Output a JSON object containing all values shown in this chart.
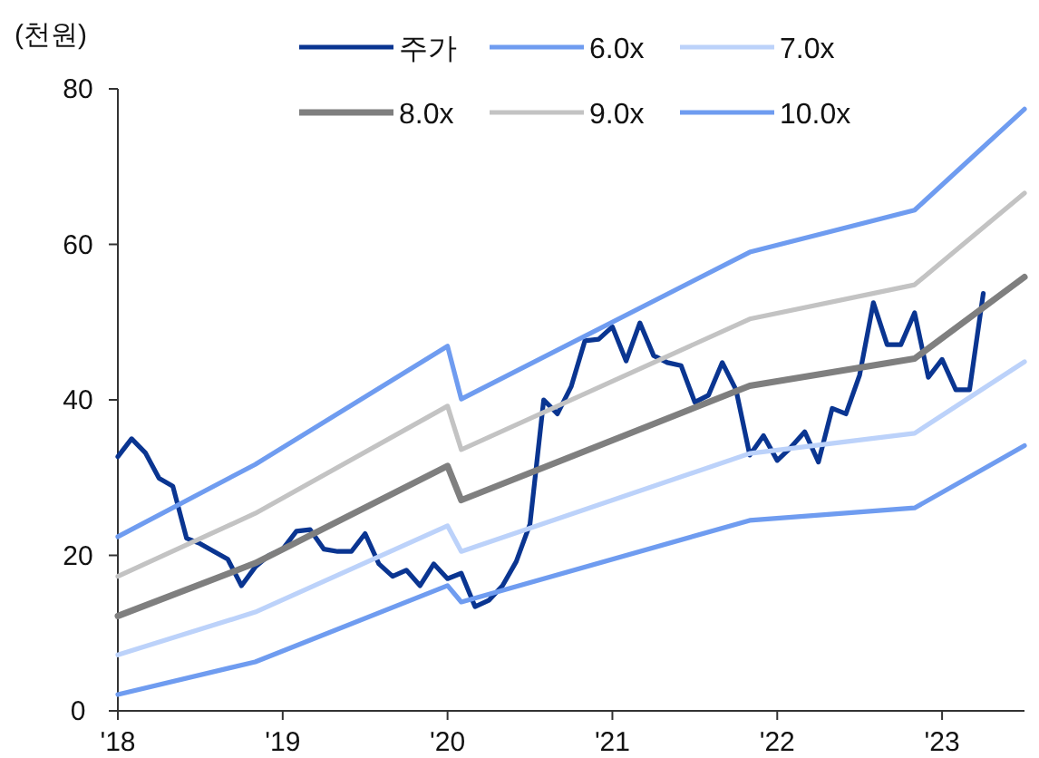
{
  "chart_data": {
    "type": "line",
    "ylabel": "(천원)",
    "legend": "top",
    "xlim": [
      "2018-01",
      "2023-07"
    ],
    "ylim": [
      0,
      80
    ],
    "yticks": [
      0,
      20,
      40,
      60,
      80
    ],
    "xticks": [
      {
        "value": "2018-01",
        "label": "'18"
      },
      {
        "value": "2019-01",
        "label": "'19"
      },
      {
        "value": "2020-01",
        "label": "'20"
      },
      {
        "value": "2021-01",
        "label": "'21"
      },
      {
        "value": "2022-01",
        "label": "'22"
      },
      {
        "value": "2023-01",
        "label": "'23"
      }
    ],
    "series": [
      {
        "name": "주가",
        "color": "#0a3591",
        "x": [
          "2018-01",
          "2018-02",
          "2018-03",
          "2018-04",
          "2018-05",
          "2018-06",
          "2018-07",
          "2018-08",
          "2018-09",
          "2018-10",
          "2018-11",
          "2018-12",
          "2019-01",
          "2019-02",
          "2019-03",
          "2019-04",
          "2019-05",
          "2019-06",
          "2019-07",
          "2019-08",
          "2019-09",
          "2019-10",
          "2019-11",
          "2019-12",
          "2020-01",
          "2020-02",
          "2020-03",
          "2020-04",
          "2020-05",
          "2020-06",
          "2020-07",
          "2020-08",
          "2020-09",
          "2020-10",
          "2020-11",
          "2020-12",
          "2021-01",
          "2021-02",
          "2021-03",
          "2021-04",
          "2021-05",
          "2021-06",
          "2021-07",
          "2021-08",
          "2021-09",
          "2021-10",
          "2021-11",
          "2021-12",
          "2022-01",
          "2022-02",
          "2022-03",
          "2022-04",
          "2022-05",
          "2022-06",
          "2022-07",
          "2022-08",
          "2022-09",
          "2022-10",
          "2022-11",
          "2022-12",
          "2023-01",
          "2023-02",
          "2023-03",
          "2023-04"
        ],
        "values": [
          32.7,
          35.0,
          33.2,
          29.9,
          28.9,
          22.2,
          21.5,
          20.5,
          19.5,
          16.1,
          18.5,
          20.0,
          20.8,
          23.1,
          23.3,
          20.8,
          20.5,
          20.5,
          22.8,
          18.9,
          17.3,
          18.1,
          16.1,
          18.9,
          17.0,
          17.7,
          13.4,
          14.2,
          16.1,
          19.2,
          24.0,
          40.0,
          38.2,
          41.7,
          47.6,
          47.8,
          49.4,
          45.0,
          49.9,
          45.7,
          44.8,
          44.4,
          39.7,
          40.6,
          44.8,
          41.3,
          32.9,
          35.4,
          32.2,
          33.9,
          35.9,
          32.0,
          38.9,
          38.2,
          43.2,
          52.5,
          47.1,
          47.1,
          51.2,
          42.9,
          45.2,
          41.3,
          41.3,
          53.7
        ]
      },
      {
        "name": "6.0x",
        "color": "#6f9cf0",
        "x": [
          "2018-01",
          "2018-11",
          "2020-01",
          "2020-02",
          "2021-11",
          "2022-11",
          "2023-07"
        ],
        "values": [
          2.1,
          6.3,
          16.1,
          14.0,
          24.5,
          26.1,
          34.1
        ]
      },
      {
        "name": "7.0x",
        "color": "#bcd2fa",
        "x": [
          "2018-01",
          "2018-11",
          "2020-01",
          "2020-02",
          "2021-11",
          "2022-11",
          "2023-07"
        ],
        "values": [
          7.2,
          12.7,
          23.8,
          20.5,
          33.1,
          35.7,
          44.9
        ]
      },
      {
        "name": "8.0x",
        "color": "#7f7f7f",
        "x": [
          "2018-01",
          "2018-11",
          "2020-01",
          "2020-02",
          "2021-11",
          "2022-11",
          "2023-07"
        ],
        "values": [
          12.2,
          19.0,
          31.5,
          27.1,
          41.8,
          45.3,
          55.8
        ]
      },
      {
        "name": "9.0x",
        "color": "#c3c3c3",
        "x": [
          "2018-01",
          "2018-11",
          "2020-01",
          "2020-02",
          "2021-11",
          "2022-11",
          "2023-07"
        ],
        "values": [
          17.3,
          25.4,
          39.2,
          33.6,
          50.4,
          54.8,
          66.6
        ]
      },
      {
        "name": "10.0x",
        "color": "#6f9cf0",
        "x": [
          "2018-01",
          "2018-11",
          "2020-01",
          "2020-02",
          "2021-11",
          "2022-11",
          "2023-07"
        ],
        "values": [
          22.4,
          31.7,
          46.9,
          40.1,
          59.0,
          64.4,
          77.4
        ]
      }
    ]
  }
}
